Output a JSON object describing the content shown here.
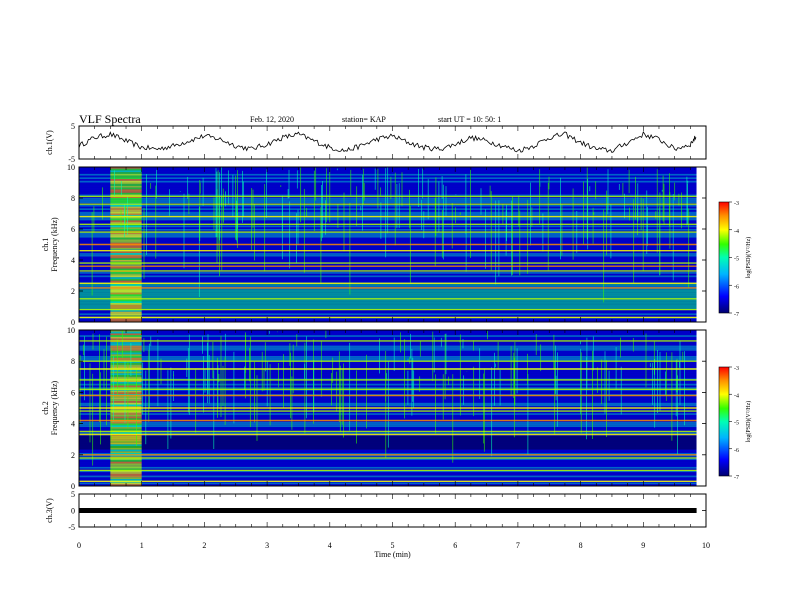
{
  "header": {
    "title": "VLF Spectra",
    "date": "Feb. 12, 2020",
    "station": "station= KAP",
    "start": "start  UT  =   10: 50: 1"
  },
  "chart_data": [
    {
      "type": "line",
      "name": "ch1-waveform",
      "ylabel": "ch.1(V)",
      "ylim": [
        -5,
        5
      ],
      "yticks": [
        "5",
        "-5"
      ],
      "x": [
        0,
        0.25,
        0.5,
        0.75,
        1,
        1.25,
        1.5,
        1.75,
        2,
        2.25,
        2.5,
        2.75,
        3,
        3.25,
        3.5,
        3.75,
        4,
        4.25,
        4.5,
        4.75,
        5,
        5.25,
        5.5,
        5.75,
        6,
        6.25,
        6.5,
        6.75,
        7,
        7.25,
        7.5,
        7.75,
        8,
        8.25,
        8.5,
        8.75,
        9,
        9.25,
        9.5,
        9.75,
        9.85
      ],
      "y": [
        -1,
        1.5,
        2.5,
        0.5,
        -1.5,
        -2,
        -1,
        0.5,
        2,
        1,
        -1,
        -2,
        -0.5,
        1.5,
        2.5,
        0.5,
        -1.5,
        -2.5,
        -1,
        1,
        2,
        0,
        -1.5,
        -2,
        -0.5,
        1.5,
        0.5,
        -1,
        -2.5,
        -1,
        1.5,
        2.5,
        0,
        -2,
        -2.5,
        0,
        2.5,
        1,
        -2,
        -0.5,
        2
      ]
    },
    {
      "type": "heatmap",
      "name": "ch1-spectrogram",
      "ylabel": "ch.1",
      "ylabel2": "Frequency (kHz)",
      "ylim": [
        0,
        10
      ],
      "yticks": [
        "0",
        "2",
        "4",
        "6",
        "8",
        "10"
      ],
      "colorbar": {
        "label": "log(PSD)(V²/Hz)",
        "range": [
          -7,
          -3
        ],
        "ticks": [
          "-3",
          "-4",
          "-5",
          "-6",
          "-7"
        ]
      },
      "strong_lines_khz": [
        0.3,
        0.8,
        1.5,
        2.2,
        2.5,
        3.3,
        3.6,
        3.8,
        4.6,
        5.0,
        5.8,
        6.3,
        6.8,
        7.6,
        8.1
      ],
      "burst_interval_min": [
        0.5,
        1.0
      ]
    },
    {
      "type": "heatmap",
      "name": "ch2-spectrogram",
      "ylabel": "ch.2",
      "ylabel2": "Frequency (kHz)",
      "ylim": [
        0,
        10
      ],
      "yticks": [
        "0",
        "2",
        "4",
        "6",
        "8",
        "10"
      ],
      "colorbar": {
        "label": "log(PSD)(V²/Hz)",
        "range": [
          -7,
          -3
        ],
        "ticks": [
          "-3",
          "-4",
          "-5",
          "-6",
          "-7"
        ]
      },
      "strong_lines_khz": [
        0.3,
        1.0,
        1.8,
        2.0,
        3.3,
        3.5,
        4.2,
        4.8,
        5.0,
        5.8,
        6.2,
        6.8,
        7.5,
        8.0,
        9.3
      ],
      "burst_interval_min": [
        0.5,
        1.0
      ]
    },
    {
      "type": "line",
      "name": "ch3-waveform",
      "ylabel": "ch.3(V)",
      "ylim": [
        -5,
        5
      ],
      "yticks": [
        "5",
        "0",
        "-5"
      ],
      "x": [
        0,
        9.85
      ],
      "y": [
        0,
        0
      ],
      "xlabel": "Time (min)",
      "xlim": [
        0,
        10
      ],
      "xticks": [
        "0",
        "1",
        "2",
        "3",
        "4",
        "5",
        "6",
        "7",
        "8",
        "9",
        "10"
      ]
    }
  ],
  "colors": {
    "cmap": [
      "#000070",
      "#0000ff",
      "#00b4ff",
      "#00ffb4",
      "#32ff00",
      "#b4ff00",
      "#ffff00",
      "#ff8c00",
      "#ff0000"
    ]
  }
}
